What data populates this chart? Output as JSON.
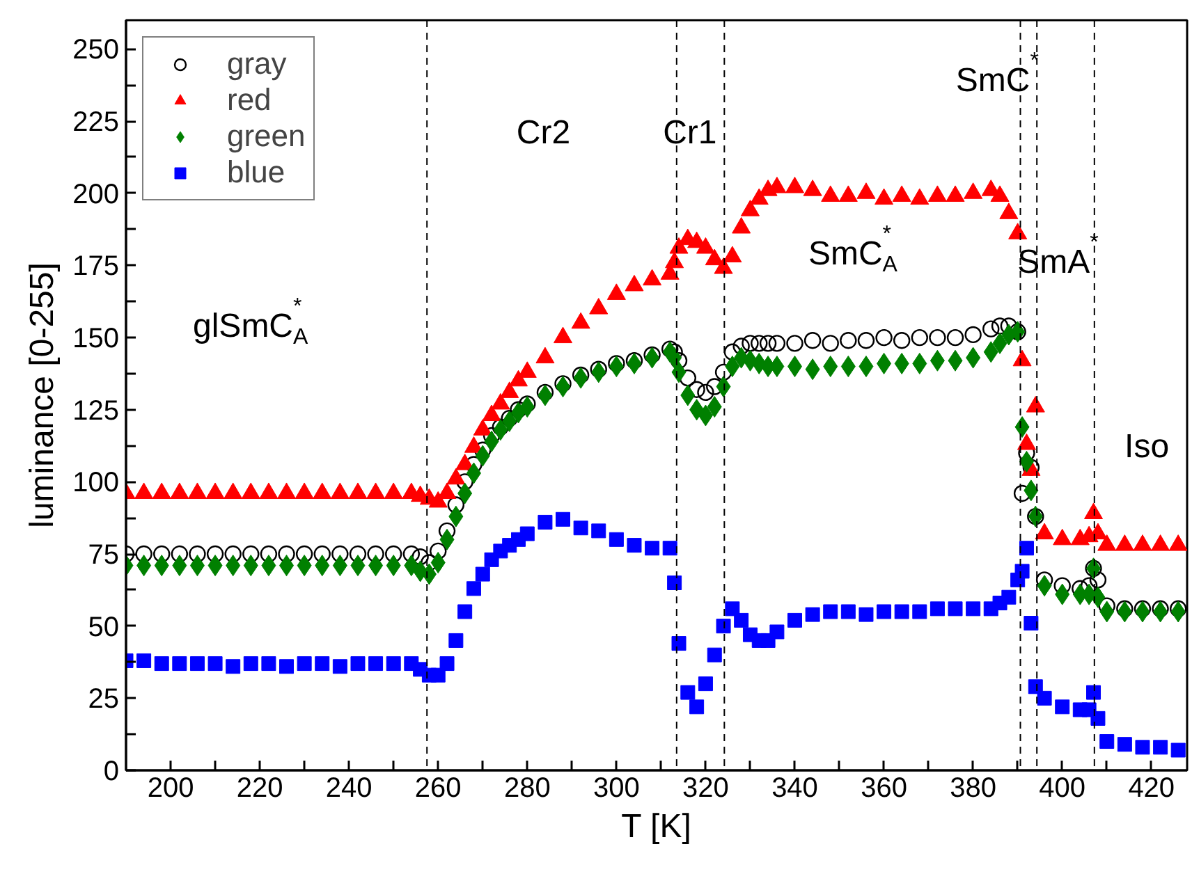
{
  "chart_data": {
    "type": "scatter",
    "xlabel": "T [K]",
    "ylabel": "luminance [0-255]",
    "xlim": [
      190,
      428
    ],
    "ylim": [
      0,
      260
    ],
    "xticks": [
      200,
      {
        "value": 210,
        "label": null
      },
      220,
      {
        "value": 230,
        "label": null
      },
      240,
      {
        "value": 250,
        "label": null
      },
      260,
      {
        "value": 270,
        "label": null
      },
      280,
      {
        "value": 290,
        "label": null
      },
      300,
      {
        "value": 310,
        "label": null
      },
      320,
      {
        "value": 330,
        "label": null
      },
      340,
      {
        "value": 350,
        "label": null
      },
      360,
      {
        "value": 370,
        "label": null
      },
      380,
      {
        "value": 390,
        "label": null
      },
      400,
      {
        "value": 410,
        "label": null
      },
      420
    ],
    "yticks": [
      0,
      {
        "value": 12.5,
        "label": null
      },
      25,
      {
        "value": 37.5,
        "label": null
      },
      50,
      {
        "value": 62.5,
        "label": null
      },
      75,
      {
        "value": 87.5,
        "label": null
      },
      100,
      {
        "value": 112.5,
        "label": null
      },
      125,
      {
        "value": 137.5,
        "label": null
      },
      150,
      {
        "value": 162.5,
        "label": null
      },
      175,
      {
        "value": 187.5,
        "label": null
      },
      200,
      {
        "value": 212.5,
        "label": null
      },
      225,
      {
        "value": 237.5,
        "label": null
      },
      250
    ],
    "grid": false,
    "legend": "top left",
    "x": [
      190,
      194,
      198,
      202,
      206,
      210,
      214,
      218,
      222,
      226,
      230,
      234,
      238,
      242,
      246,
      250,
      254,
      256,
      258,
      260,
      262,
      264,
      266,
      268,
      270,
      272,
      274,
      276,
      278,
      280,
      284,
      288,
      292,
      296,
      300,
      304,
      308,
      312,
      313,
      314,
      316,
      318,
      320,
      322,
      324,
      326,
      328,
      330,
      332,
      334,
      336,
      340,
      344,
      348,
      352,
      356,
      360,
      364,
      368,
      372,
      376,
      380,
      384,
      386,
      388,
      390,
      391,
      392,
      393,
      394,
      396,
      400,
      404,
      406,
      407,
      408,
      410,
      414,
      418,
      422,
      426
    ],
    "series": [
      {
        "name": "gray",
        "color": "#000000",
        "marker": "circle",
        "values": [
          75,
          75,
          75,
          75,
          75,
          75,
          75,
          75,
          75,
          75,
          75,
          75,
          75,
          75,
          75,
          75,
          75,
          74,
          72,
          76,
          83,
          92,
          100,
          106,
          111,
          116,
          119,
          122,
          125,
          127,
          131,
          134,
          137,
          139,
          141,
          142,
          144,
          146,
          145,
          142,
          136,
          132,
          131,
          133,
          138,
          145,
          147,
          148,
          148,
          148,
          148,
          148,
          149,
          148,
          149,
          149,
          150,
          149,
          150,
          150,
          150,
          151,
          153,
          154,
          154,
          152,
          96,
          110,
          105,
          88,
          66,
          64,
          63,
          64,
          70,
          66,
          57,
          56,
          56,
          56,
          56
        ]
      },
      {
        "name": "red",
        "color": "#ff0000",
        "marker": "triangle",
        "values": [
          96,
          96,
          96,
          96,
          96,
          96,
          96,
          96,
          96,
          96,
          96,
          96,
          96,
          96,
          96,
          96,
          96,
          95,
          94,
          93,
          96,
          101,
          106,
          112,
          118,
          123,
          127,
          131,
          135,
          138,
          143,
          150,
          155,
          160,
          165,
          168,
          170,
          172,
          176,
          181,
          184,
          183,
          181,
          177,
          174,
          178,
          188,
          194,
          198,
          201,
          202,
          202,
          201,
          199,
          199,
          200,
          198,
          199,
          198,
          199,
          199,
          200,
          201,
          199,
          193,
          186,
          142,
          113,
          104,
          126,
          82,
          80,
          80,
          81,
          89,
          82,
          78,
          78,
          78,
          78,
          78
        ]
      },
      {
        "name": "green",
        "color": "#008000",
        "marker": "diamond",
        "values": [
          71,
          71,
          71,
          71,
          71,
          71,
          71,
          71,
          71,
          71,
          71,
          71,
          71,
          71,
          71,
          71,
          71,
          69,
          68,
          72,
          80,
          88,
          96,
          103,
          109,
          114,
          118,
          121,
          124,
          126,
          130,
          133,
          136,
          138,
          140,
          141,
          143,
          145,
          143,
          138,
          130,
          125,
          123,
          126,
          133,
          140,
          143,
          142,
          141,
          140,
          140,
          140,
          139,
          140,
          140,
          140,
          141,
          141,
          141,
          142,
          142,
          143,
          145,
          148,
          151,
          152,
          119,
          107,
          97,
          88,
          64,
          61,
          61,
          61,
          70,
          60,
          55,
          55,
          55,
          55,
          55
        ]
      },
      {
        "name": "blue",
        "color": "#0000ff",
        "marker": "square",
        "values": [
          38,
          38,
          37,
          37,
          37,
          37,
          36,
          37,
          37,
          36,
          37,
          37,
          36,
          37,
          37,
          37,
          37,
          35,
          33,
          33,
          37,
          45,
          55,
          63,
          68,
          73,
          76,
          78,
          80,
          82,
          86,
          87,
          84,
          83,
          80,
          78,
          77,
          77,
          65,
          44,
          27,
          22,
          30,
          40,
          50,
          56,
          52,
          47,
          45,
          45,
          48,
          52,
          54,
          55,
          55,
          54,
          55,
          55,
          55,
          56,
          56,
          56,
          56,
          58,
          60,
          66,
          69,
          77,
          51,
          29,
          25,
          22,
          21,
          21,
          27,
          18,
          10,
          9,
          8,
          8,
          7
        ]
      }
    ],
    "ref_lines": [
      {
        "axis": "x",
        "value": 257.5,
        "color": "#000000",
        "line_style": "dashed"
      },
      {
        "axis": "x",
        "value": 313.5,
        "color": "#000000",
        "line_style": "dashed"
      },
      {
        "axis": "x",
        "value": 324.2,
        "color": "#000000",
        "line_style": "dashed"
      },
      {
        "axis": "x",
        "value": 390.6,
        "color": "#000000",
        "line_style": "dashed"
      },
      {
        "axis": "x",
        "value": 394.3,
        "color": "#000000",
        "line_style": "dashed"
      },
      {
        "axis": "x",
        "value": 407.2,
        "color": "#000000",
        "line_style": "dashed"
      }
    ],
    "annotations": [
      "glSmC$^{*}$$_{A}$",
      "Cr2",
      "Cr1",
      "SmC$^{*}$$_{A}$",
      "SmC$^{*}$",
      "SmA$^{*}$",
      "Iso"
    ]
  }
}
